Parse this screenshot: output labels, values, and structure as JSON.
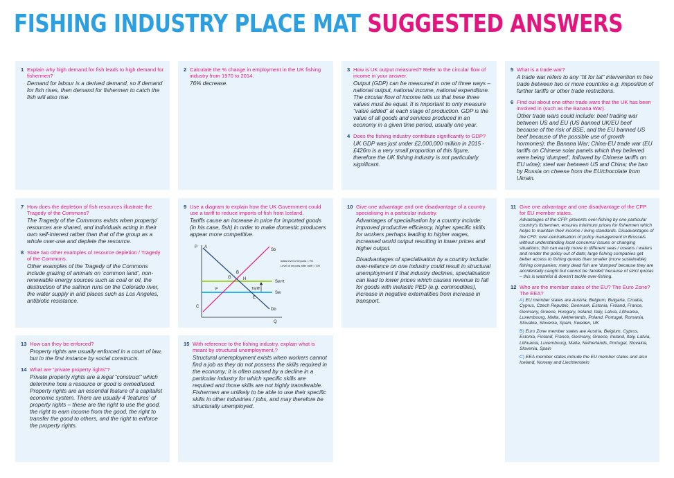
{
  "title": {
    "part1": "FISHING INDUSTRY PLACE MAT",
    "part2": "SUGGESTED ANSWERS"
  },
  "colors": {
    "blue": "#2c9fe1",
    "pink": "#e2157f",
    "box": "#e9f3fc",
    "green": "#a5d233"
  },
  "q1": {
    "num": "1",
    "question": "Explain why high demand for fish leads to high demand for fishermen?",
    "answer": "Demand for labour is a derived demand, so if demand for fish rises, then demand for fishermen to catch the fish will also rise."
  },
  "q2": {
    "num": "2",
    "question": "Calculate the % change in employment in the UK fishing industry from 1970 to 2014.",
    "answer": "76% decrease."
  },
  "q3": {
    "num": "3",
    "question": "How is UK output measured? Refer to the circular flow of income in your answer.",
    "answer": "Output (GDP) can be measured in one of three ways – national output, national income, national expenditure. The circular flow of income tells us that hese three values must be equal. It is important to only measure “value added” at each stage of production. GDP is the value of all goods and services produced in an economy in a given time period, usually one year."
  },
  "q4": {
    "num": "4",
    "question": "Does the fishing industry contribute significantly to GDP?",
    "answer": "UK GDP was just under £2,000,000 million in 2015 - £426m is a very small proportion of this figure, therefore the UK fishing industry is not particularly significant."
  },
  "q5": {
    "num": "5",
    "question": "What is a trade war?",
    "answer": "A trade war refers to any “tit for tat” intervention in free trade between two or more countries e.g. imposition of further tariffs or other trade restrictions."
  },
  "q6": {
    "num": "6",
    "question": "Find out about one other trade wars that the UK has been involved in (such as the Banana War).",
    "answer": "Other trade wars could include: beef trading war between US and EU (US banned UK/EU beef because of the risk of BSE, and the EU banned US beef because of the possible use of growth hormones); the Banana War; China-EU trade war (EU tariffs on Chinese solar panels which they believed were being ‘dumped’, followed by Chinese tariffs on EU wine); steel war between US and China; the ban by Russia on cheese from the EU/chocolate from Ukrain."
  },
  "q7": {
    "num": "7",
    "question": "How does the depletion of fish resources illustrate the Tragedy of the Commons?",
    "answer": "The Tragedy of the Commons exists when property/ resources are shared, and individuals acting in their own self-interest rather than that of the group as a whole over-use and deplete the resource."
  },
  "q8": {
    "num": "8",
    "question": "State two other examples of resource depletion / Tragedy of the Commons.",
    "answer": "Other examples of the Tragedy of the Commons include grazing of animals on ‘common land’, non-renewable energy sources such as coal or oil, the destruction of the salmon runs on the Colorado river, the water supply in arid places such as Los Angeles, antibiotic resistance."
  },
  "q9": {
    "num": "9",
    "question": "Use a diagram to explain how the UK Government could use a tariff to reduce imports of fish from Iceland.",
    "answer": "Tariffs cause an increase in price for imported goods (in his case, fish) in order to make domestic producers appear more competitive.",
    "diagram": {
      "p": "P",
      "a": "A",
      "b": "B",
      "c": "C",
      "e": "E",
      "f": "F",
      "g": "G",
      "h": "H",
      "q": "Q",
      "sd": "Sᴅ",
      "dd": "Dᴅ",
      "sw_t": "Sᴡ+t",
      "sw": "Sᴡ",
      "tariff": "Tariff",
      "note1": "Initial level of imports = FE",
      "note2": "Level of imports after tariff = GH"
    }
  },
  "q10": {
    "num": "10",
    "question": "Give one advantage and one disadvantage of a country specialising in a particular industry.",
    "answer1": "Advantages of specialisation by a country include: improved productive efficiency, higher specific skills for workers perhaps leading to higher wages, increased world output resulting in lower prices and higher output.",
    "answer2": "Disadvantages of specialisation by a country include: over-reliance on one industry could result in structural unemployment if that industry declines, specialisation can lead to lower prices which causes revenue to fall for goods with inelastic PED (e.g. commodities), increase in negative externalities from increase in transport."
  },
  "q11": {
    "num": "11",
    "question": "Give one advantage and one disadvantage of the CFP for EU member states.",
    "answer": "Advantages of the CFP: prevents over-fishing by one particular country's fishermen; ensures minimum prices for fishermen which helps to maintain their income / living standards. Disadvantages of the CFP: over-centralisation of policy management in Brussels without understanding local concerns/ issues or changing situations; fish can easily move to different seas / oceans / waters and render the policy out of date; large fishing companies get better access to fishing quotas than smaller (more sustainable) fishing companies; many dead fish are ‘dumped’ because they are accidentally caught but cannot be ‘landed’ because of strict quotas – this is wasteful & doesn't tackle over-fishing."
  },
  "q12": {
    "num": "12",
    "question": "Who are the member states of the EU? The Euro Zone? The EEA?",
    "a_label": "A)",
    "a_text": "EU member states are Austria, Belgium, Bulgaria, Croatia, Cyprus, Czech Republic, Denmark, Estonia, Finland, France, Germany, Greece, Hungary, Ireland, Italy, Latvia, Lithuania, Luxembourg, Malta, Netherlands, Poland, Portugal, Romania, Slovakia, Slovenia, Spain, Sweden, UK",
    "b_label": "B)",
    "b_text": "Euro Zone member states are Austria, Belgium, Cyprus, Estonia, Finland, France, Germany, Greece, Ireland, Italy, Latvia, Lithuania, Luxembourg, Malta, Netherlands, Portugal, Slovakia, Slovenia, Spain",
    "c_label": "C)",
    "c_text": "EEA member states include the EU member states and also Iceland, Norway and Liechtenstein"
  },
  "q13": {
    "num": "13",
    "question": "How can they be enforced?",
    "answer": "Property rights are usually enforced in a court of law, but in the first instance by social constructs."
  },
  "q14": {
    "num": "14",
    "question": "What are “private property rights”?",
    "answer": "Private property rights are a legal “construct” which determine how a resource or good is owned/used. Property rights are an essential feature of a capitalist economic system. There are usually 4 ‘features’ of property rights – these are the right to use the good, the right to earn income from the good, the right to transfer the good to others, and the right to enforce the property rights."
  },
  "q15": {
    "num": "15",
    "question": "With reference to the fishing industry, explain what is meant by structural unemployment.?",
    "answer": "Structural unemployment exists when workers cannot find a job as they do not possess the skills required in the economy; it is often caused by a decline in a particular industry for which specific skills are required and those skills are not highly transferable. Fishermen are unlikely to be able to use their specific skills in other industries / jobs, and may therefore be structurally unemployed."
  }
}
